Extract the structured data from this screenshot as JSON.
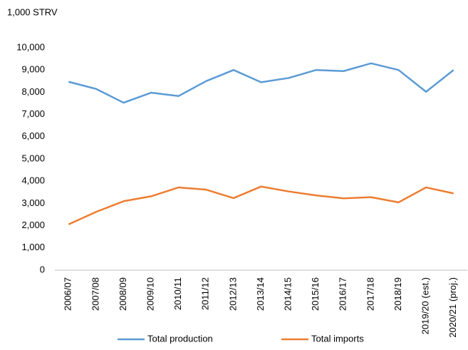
{
  "chart_data": {
    "type": "line",
    "y_label": "1,000 STRV",
    "categories": [
      "2006/07",
      "2007/08",
      "2008/09",
      "2009/10",
      "2010/11",
      "2011/12",
      "2012/13",
      "2013/14",
      "2014/15",
      "2015/16",
      "2016/17",
      "2017/18",
      "2018/19",
      "2019/20 (est.)",
      "2020/21 (proj.)"
    ],
    "series": [
      {
        "name": "Total production",
        "color": "#5b9bd5",
        "values": [
          8470,
          8150,
          7530,
          7980,
          7830,
          8500,
          9000,
          8450,
          8640,
          9000,
          8950,
          9300,
          9000,
          8020,
          9000
        ]
      },
      {
        "name": "Total imports",
        "color": "#ed7d31",
        "values": [
          2060,
          2620,
          3100,
          3320,
          3720,
          3620,
          3240,
          3760,
          3540,
          3360,
          3230,
          3280,
          3050,
          3720,
          3450
        ]
      }
    ],
    "ylim": [
      0,
      10000
    ],
    "yticks": [
      0,
      {
        "value": 1000,
        "label": "1,000"
      },
      {
        "value": 2000,
        "label": "2,000"
      },
      {
        "value": 3000,
        "label": "3,000"
      },
      {
        "value": 4000,
        "label": "4,000"
      },
      {
        "value": 5000,
        "label": "5,000"
      },
      {
        "value": 6000,
        "label": "6,000"
      },
      {
        "value": 7000,
        "label": "7,000"
      },
      {
        "value": 8000,
        "label": "8,000"
      },
      {
        "value": 9000,
        "label": "9,000"
      },
      {
        "value": 10000,
        "label": "10,000"
      }
    ],
    "grid": false,
    "legend": "bottom"
  }
}
